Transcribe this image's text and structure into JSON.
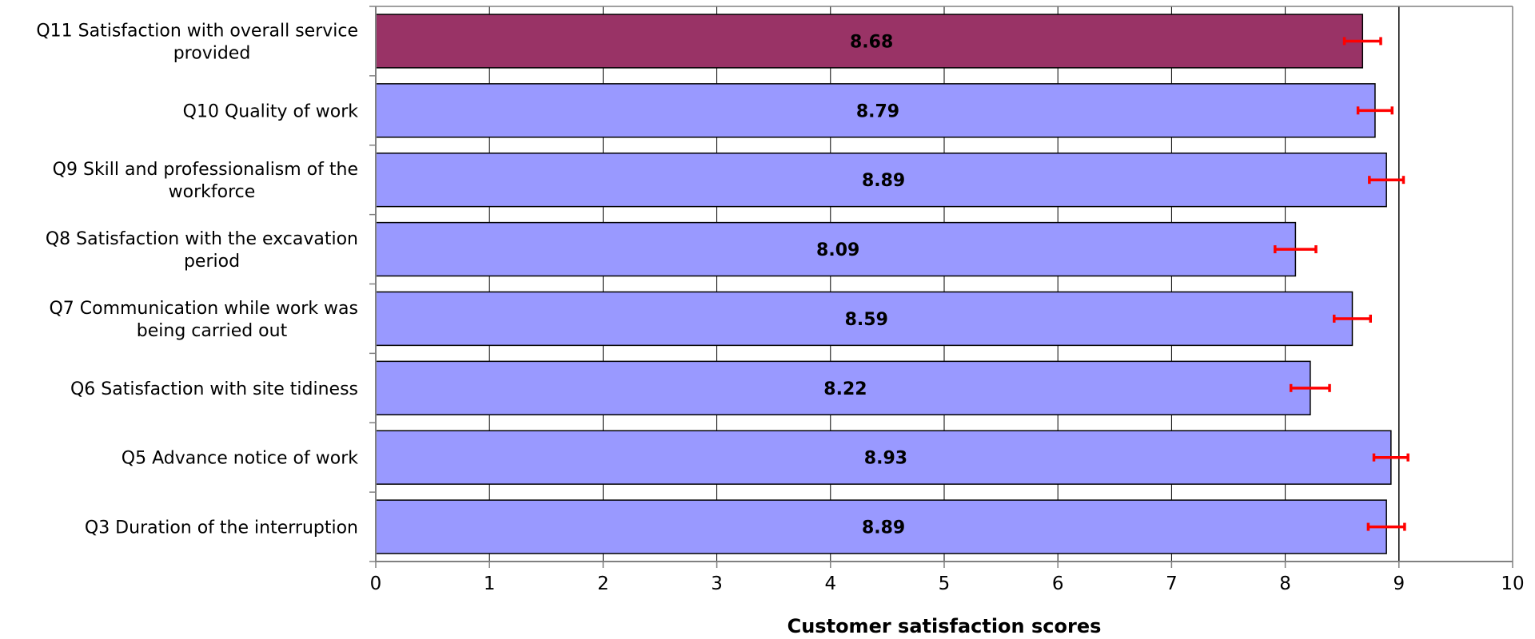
{
  "chart_data": {
    "type": "bar",
    "orientation": "horizontal",
    "title": "",
    "xlabel": "Customer satisfaction scores",
    "ylabel": "",
    "xlim": [
      0,
      10
    ],
    "x_ticks": [
      "0",
      "1",
      "2",
      "3",
      "4",
      "5",
      "6",
      "7",
      "8",
      "9",
      "10"
    ],
    "grid": "vertical gridlines at each integer",
    "reference_line": 9,
    "categories": [
      [
        "Q11 Satisfaction with overall service",
        "provided"
      ],
      [
        "Q10 Quality of work"
      ],
      [
        "Q9 Skill and professionalism of the",
        "workforce"
      ],
      [
        "Q8 Satisfaction with the excavation",
        "period"
      ],
      [
        "Q7 Communication while work was",
        "being carried out"
      ],
      [
        "Q6 Satisfaction with site tidiness"
      ],
      [
        "Q5 Advance notice of work"
      ],
      [
        "Q3 Duration of the interruption"
      ]
    ],
    "values": [
      8.68,
      8.79,
      8.89,
      8.09,
      8.59,
      8.22,
      8.93,
      8.89
    ],
    "value_labels": [
      "8.68",
      "8.79",
      "8.89",
      "8.09",
      "8.59",
      "8.22",
      "8.93",
      "8.89"
    ],
    "error_low": [
      8.52,
      8.64,
      8.74,
      7.91,
      8.43,
      8.05,
      8.78,
      8.73
    ],
    "error_high": [
      8.84,
      8.94,
      9.04,
      8.27,
      8.75,
      8.39,
      9.08,
      9.05
    ],
    "bar_colors": [
      "#993366",
      "#9999ff",
      "#9999ff",
      "#9999ff",
      "#9999ff",
      "#9999ff",
      "#9999ff",
      "#9999ff"
    ],
    "error_bar_color": "#ff0000"
  }
}
